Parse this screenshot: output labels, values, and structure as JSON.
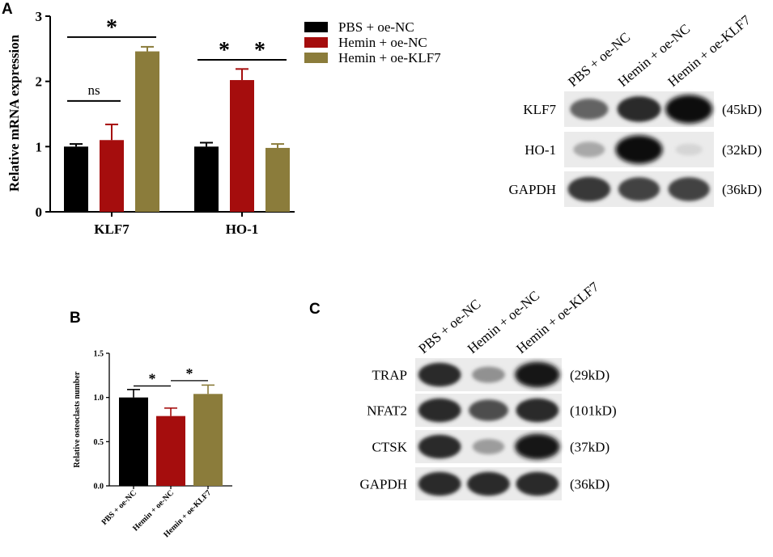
{
  "panel_labels": {
    "a": "A",
    "b": "B",
    "c": "C"
  },
  "colors": {
    "black": "#000000",
    "red": "#a50d0d",
    "olive": "#8b7c3b"
  },
  "chart_data": [
    {
      "panel": "A",
      "type": "bar",
      "ylabel": "Relative mRNA expression",
      "ylim": [
        0,
        3
      ],
      "yticks": [
        0,
        1,
        2,
        3
      ],
      "categories": [
        "KLF7",
        "HO-1"
      ],
      "series": [
        {
          "name": "PBS + oe-NC",
          "values": [
            1.0,
            1.0
          ],
          "errors": [
            0.04,
            0.06
          ],
          "color": "#000000"
        },
        {
          "name": "Hemin + oe-NC",
          "values": [
            1.1,
            2.02
          ],
          "errors": [
            0.24,
            0.17
          ],
          "color": "#a50d0d"
        },
        {
          "name": "Hemin + oe-KLF7",
          "values": [
            2.46,
            0.98
          ],
          "errors": [
            0.07,
            0.06
          ],
          "color": "#8b7c3b"
        }
      ],
      "annotations": [
        {
          "text": "ns",
          "group": 0,
          "from": 0,
          "to": 1,
          "level": 1.7
        },
        {
          "text": "*",
          "group": 0,
          "from": 0,
          "to": 2,
          "level": 2.68
        },
        {
          "text": "*",
          "group": 1,
          "from": 0,
          "to": 1,
          "level": 2.33
        },
        {
          "text": "*",
          "group": 1,
          "from": 1,
          "to": 2,
          "level": 2.33
        }
      ],
      "grid": false,
      "legend": "top-right"
    },
    {
      "panel": "B",
      "type": "bar",
      "ylabel": "Relative osteoclasts number",
      "ylim": [
        0,
        1.5
      ],
      "yticks": [
        "0.0",
        "0.5",
        "1.0",
        "1.5"
      ],
      "categories": [
        "PBS + oe-NC",
        "Hemin + oe-NC",
        "Hemin + oe-KLF7"
      ],
      "values": [
        1.0,
        0.79,
        1.04
      ],
      "errors": [
        0.09,
        0.09,
        0.1
      ],
      "colors": [
        "#000000",
        "#a50d0d",
        "#8b7c3b"
      ],
      "annotations": [
        {
          "text": "*",
          "from": 0,
          "to": 1,
          "level": 1.13
        },
        {
          "text": "*",
          "from": 1,
          "to": 2,
          "level": 1.19
        }
      ],
      "grid": false
    }
  ],
  "blot_a": {
    "lanes": [
      "PBS + oe-NC",
      "Hemin + oe-NC",
      "Hemin + oe-KLF7"
    ],
    "rows": [
      {
        "protein": "KLF7",
        "size": "(45kD)",
        "intensity": [
          0.6,
          0.85,
          1.0
        ]
      },
      {
        "protein": "HO-1",
        "size": "(32kD)",
        "intensity": [
          0.3,
          1.0,
          0.1
        ]
      },
      {
        "protein": "GAPDH",
        "size": "(36kD)",
        "intensity": [
          0.8,
          0.75,
          0.75
        ]
      }
    ]
  },
  "blot_c": {
    "lanes": [
      "PBS + oe-NC",
      "Hemin + oe-NC",
      "Hemin + oe-KLF7"
    ],
    "rows": [
      {
        "protein": "TRAP",
        "size": "(29kD)",
        "intensity": [
          0.85,
          0.4,
          0.95
        ]
      },
      {
        "protein": "NFAT2",
        "size": "(101kD)",
        "intensity": [
          0.85,
          0.7,
          0.85
        ]
      },
      {
        "protein": "CTSK",
        "size": "(37kD)",
        "intensity": [
          0.85,
          0.35,
          0.95
        ]
      },
      {
        "protein": "GAPDH",
        "size": "(36kD)",
        "intensity": [
          0.85,
          0.85,
          0.85
        ]
      }
    ]
  }
}
